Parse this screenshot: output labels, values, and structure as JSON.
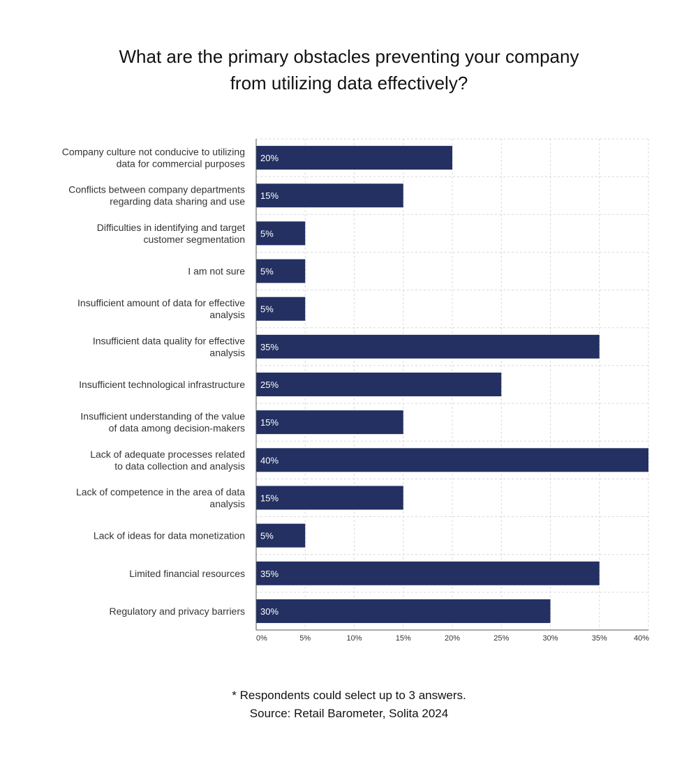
{
  "title_lines": [
    "What are the primary obstacles preventing your company",
    "from utilizing data effectively?"
  ],
  "chart_data": {
    "type": "bar",
    "orientation": "horizontal",
    "categories": [
      [
        "Company culture not conducive to utilizing",
        "data for commercial purposes"
      ],
      [
        "Conflicts between company departments",
        "regarding data sharing and use"
      ],
      [
        "Difficulties in identifying and target",
        "customer segmentation"
      ],
      [
        "I am not sure"
      ],
      [
        "Insufficient amount of data for effective",
        "analysis"
      ],
      [
        "Insufficient data quality for effective",
        "analysis"
      ],
      [
        "Insufficient technological infrastructure"
      ],
      [
        "Insufficient understanding of the value",
        "of data among decision-makers"
      ],
      [
        "Lack of adequate processes related",
        "to data collection and analysis"
      ],
      [
        "Lack of competence in the area of data",
        "analysis"
      ],
      [
        "Lack of ideas for data monetization"
      ],
      [
        "Limited financial resources"
      ],
      [
        "Regulatory and privacy barriers"
      ]
    ],
    "values": [
      20,
      15,
      5,
      5,
      5,
      35,
      25,
      15,
      40,
      15,
      5,
      35,
      30
    ],
    "data_labels": [
      "20%",
      "15%",
      "5%",
      "5%",
      "5%",
      "35%",
      "25%",
      "15%",
      "40%",
      "15%",
      "5%",
      "35%",
      "30%"
    ],
    "xlim": [
      0,
      40
    ],
    "xticks": [
      0,
      5,
      10,
      15,
      20,
      25,
      30,
      35,
      40
    ],
    "xtick_labels": [
      "0%",
      "5%",
      "10%",
      "15%",
      "20%",
      "25%",
      "30%",
      "35%",
      "40%"
    ],
    "grid": true,
    "bar_color": "#233061",
    "data_label_color": "#ffffff"
  },
  "footnote_lines": [
    "* Respondents could select up to 3 answers.",
    "Source: Retail Barometer, Solita 2024"
  ]
}
